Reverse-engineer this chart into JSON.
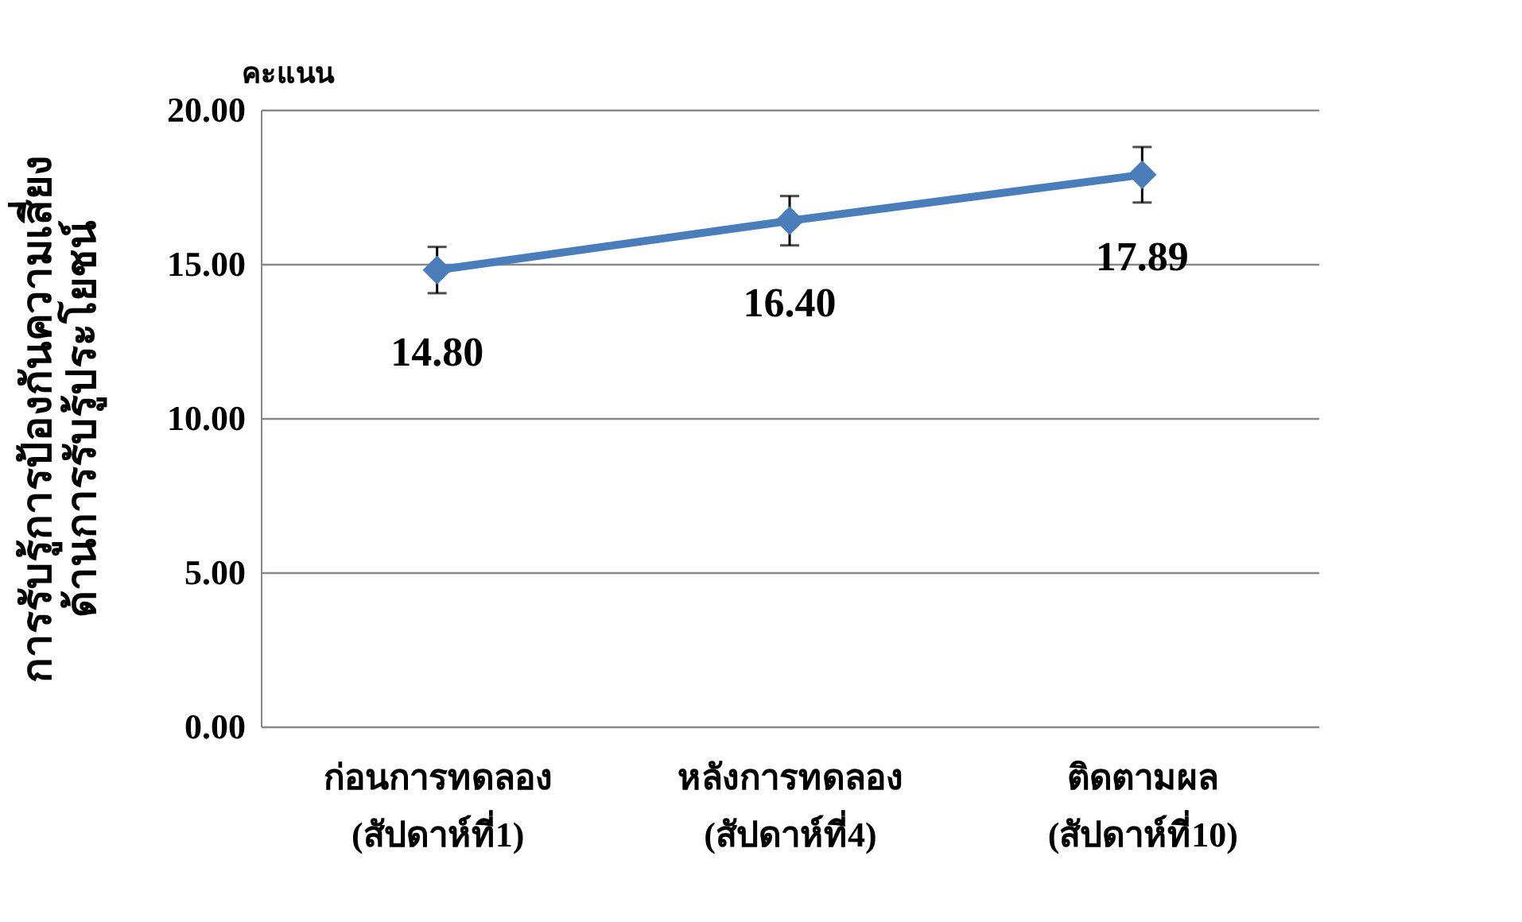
{
  "chart_data": {
    "type": "line",
    "ylabel": "การรับรู้การป้องกันความเสี่ยง\nด้านการรับรู้ประโยชน์",
    "annotations": [
      "คะแนน"
    ],
    "categories": [
      "ก่อนการทดลอง\n(สัปดาห์ที่1)",
      "หลังการทดลอง\n(สัปดาห์ที่4)",
      "ติดตามผล\n(สัปดาห์ที่10)"
    ],
    "series": [
      {
        "color": "#4a7ebb",
        "values": [
          14.8,
          16.4,
          17.89
        ],
        "errors": [
          0.75,
          0.8,
          0.9
        ]
      }
    ],
    "value_labels": [
      "14.80",
      "16.40",
      "17.89"
    ],
    "ylim": [
      0,
      20
    ],
    "yticks": [
      {
        "value": 0,
        "label": "0.00"
      },
      {
        "value": 5,
        "label": "5.00"
      },
      {
        "value": 10,
        "label": "10.00"
      },
      {
        "value": 15,
        "label": "15.00"
      },
      {
        "value": 20,
        "label": "20.00"
      }
    ],
    "grid": "y",
    "marker": "diamond",
    "line_style": "solid"
  }
}
